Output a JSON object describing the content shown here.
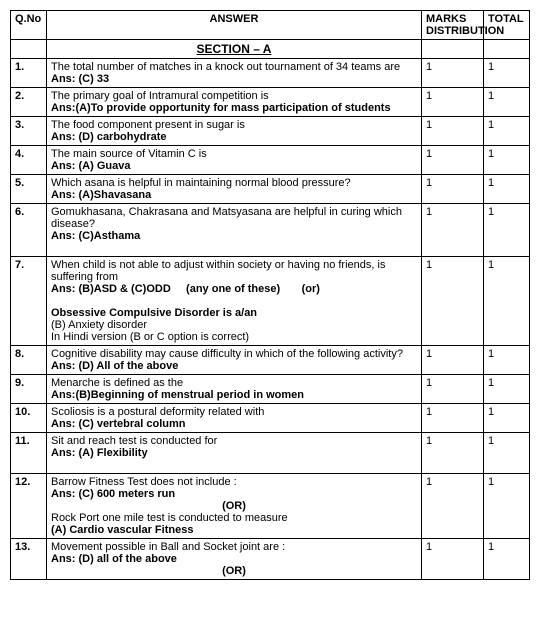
{
  "headers": {
    "qno": "Q.No",
    "answer": "ANSWER",
    "marks": "MARKS DISTRIBUTION",
    "total": "TOTAL"
  },
  "section": "SECTION – A",
  "rows": [
    {
      "q": "1.",
      "q_text": "The total number of matches in a knock out tournament of 34 teams are",
      "ans": "Ans:  (C)  33",
      "marks": "1",
      "total": "1"
    },
    {
      "q": "2.",
      "q_text": "The primary goal of Intramural competition is",
      "ans": "Ans:(A)To provide opportunity for mass participation of students",
      "marks": "1",
      "total": "1"
    },
    {
      "q": "3.",
      "q_text": "The food component present in sugar is",
      "ans": "Ans: (D) carbohydrate",
      "marks": "1",
      "total": "1"
    },
    {
      "q": "4.",
      "q_text": "The main source of Vitamin C is",
      "ans": "Ans: (A) Guava",
      "marks": "1",
      "total": "1"
    },
    {
      "q": "5.",
      "q_text": "Which asana is helpful in maintaining normal blood pressure?",
      "ans": "Ans: (A)Shavasana",
      "marks": "1",
      "total": "1"
    },
    {
      "q": "6.",
      "q_text": "Gomukhasana, Chakrasana and Matsyasana are helpful in curing which disease?",
      "ans": "Ans: (C)Asthama",
      "marks": "1",
      "total": "1"
    },
    {
      "q": "7.",
      "q_text": "When child is not able to adjust within society or having no friends, is suffering from",
      "ans": "Ans: (B)ASD & (C)ODD",
      "extra1": "(any one of these)",
      "extra2": "(or)",
      "sub1_bold": "Obsessive Compulsive Disorder is a/an",
      "sub2": "(B) Anxiety disorder",
      "sub3": "In Hindi version (B or C option is correct)",
      "marks": "1",
      "total": "1"
    },
    {
      "q": "8.",
      "q_text": "Cognitive disability may cause difficulty in which of the following activity?",
      "ans": "Ans: (D) All of the above",
      "marks": "1",
      "total": "1"
    },
    {
      "q": "9.",
      "q_text": "Menarche is defined as the",
      "ans": "Ans:(B)Beginning of menstrual period in women",
      "marks": "1",
      "total": "1"
    },
    {
      "q": "10.",
      "q_text": "Scoliosis is a postural deformity related with",
      "ans": "Ans: (C) vertebral column",
      "marks": "1",
      "total": "1"
    },
    {
      "q": "11.",
      "q_text": "Sit and reach test is conducted for",
      "ans": "Ans: (A) Flexibility",
      "marks": "1",
      "total": "1"
    },
    {
      "q": "12.",
      "q_text": "Barrow Fitness Test does not include :",
      "ans": "Ans: (C) 600 meters run",
      "or": "(OR)",
      "sub2": "Rock Port one mile test is conducted to measure",
      "sub3_bold": " (A) Cardio vascular Fitness",
      "marks": "1",
      "total": "1"
    },
    {
      "q": "13.",
      "q_text": "Movement possible in Ball and Socket joint are :",
      "ans": "Ans: (D) all of the above",
      "or": "(OR)",
      "marks": "1",
      "total": "1"
    }
  ]
}
